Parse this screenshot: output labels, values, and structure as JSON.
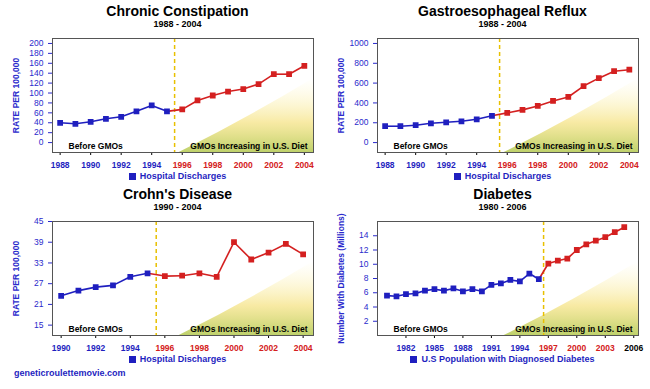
{
  "footer": "geneticroulettemovie.com",
  "chart_data": [
    {
      "type": "line",
      "title": "Chronic Constipation",
      "subtitle": "1988 - 2004",
      "ylabel": "RATE PER 100,000",
      "x": [
        1988,
        1989,
        1990,
        1991,
        1992,
        1993,
        1994,
        1995,
        1996,
        1997,
        1998,
        1999,
        2000,
        2001,
        2002,
        2003,
        2004
      ],
      "series": [
        {
          "name": "Hospital Discharges",
          "color": "#1f1fbf",
          "marker": "square",
          "values": [
            40,
            38,
            42,
            48,
            52,
            63,
            75,
            63,
            67,
            85,
            95,
            103,
            108,
            118,
            138,
            138,
            155
          ],
          "colors": [
            "#1f1fbf",
            "#1f1fbf",
            "#1f1fbf",
            "#1f1fbf",
            "#1f1fbf",
            "#1f1fbf",
            "#1f1fbf",
            "#1f1fbf",
            "#d42020",
            "#d42020",
            "#d42020",
            "#d42020",
            "#d42020",
            "#d42020",
            "#d42020",
            "#d42020",
            "#d42020"
          ]
        }
      ],
      "xlim": [
        1987.5,
        2004.6
      ],
      "xticks": [
        1988,
        1990,
        1992,
        1994,
        1996,
        1998,
        2000,
        2002,
        2004
      ],
      "ylim": [
        -20,
        210
      ],
      "yticks": [
        0,
        20,
        40,
        60,
        80,
        100,
        120,
        140,
        160,
        180,
        200
      ],
      "grid": false,
      "legend": "bottom",
      "vline": {
        "x": 1995.5,
        "color": "#e8c000",
        "line_style": "dashed"
      },
      "annotations": [
        "Before GMOs",
        "GMOs Increasing in U.S. Diet"
      ]
    },
    {
      "type": "line",
      "title": "Gastroesophageal Reflux",
      "subtitle": "1988 - 2004",
      "ylabel": "RATE PER 100,000",
      "x": [
        1988,
        1989,
        1990,
        1991,
        1992,
        1993,
        1994,
        1995,
        1996,
        1997,
        1998,
        1999,
        2000,
        2001,
        2002,
        2003,
        2004
      ],
      "series": [
        {
          "name": "Hospital Discharges",
          "color": "#1f1fbf",
          "marker": "square",
          "values": [
            165,
            165,
            175,
            195,
            205,
            215,
            235,
            270,
            300,
            330,
            370,
            420,
            460,
            570,
            650,
            720,
            735
          ],
          "colors": [
            "#1f1fbf",
            "#1f1fbf",
            "#1f1fbf",
            "#1f1fbf",
            "#1f1fbf",
            "#1f1fbf",
            "#1f1fbf",
            "#1f1fbf",
            "#d42020",
            "#d42020",
            "#d42020",
            "#d42020",
            "#d42020",
            "#d42020",
            "#d42020",
            "#d42020",
            "#d42020"
          ]
        }
      ],
      "xlim": [
        1987.5,
        2004.6
      ],
      "xticks": [
        1988,
        1990,
        1992,
        1994,
        1996,
        1998,
        2000,
        2002,
        2004
      ],
      "ylim": [
        -100,
        1050
      ],
      "yticks": [
        0,
        200,
        400,
        600,
        800,
        1000
      ],
      "grid": false,
      "legend": "bottom",
      "vline": {
        "x": 1995.5,
        "color": "#e8c000",
        "line_style": "dashed"
      },
      "annotations": [
        "Before GMOs",
        "GMOs Increasing in U.S. Diet"
      ]
    },
    {
      "type": "line",
      "title": "Crohn's Disease",
      "subtitle": "1990 - 2004",
      "ylabel": "RATE PER 100,000",
      "x": [
        1990,
        1991,
        1992,
        1993,
        1994,
        1995,
        1996,
        1997,
        1998,
        1999,
        2000,
        2001,
        2002,
        2003,
        2004
      ],
      "series": [
        {
          "name": "Hospital Discharges",
          "color": "#1f1fbf",
          "marker": "square",
          "values": [
            23.5,
            25,
            26,
            26.5,
            29,
            30,
            29.2,
            29.3,
            30,
            29,
            39,
            34,
            36,
            38.5,
            35.5
          ],
          "colors": [
            "#1f1fbf",
            "#1f1fbf",
            "#1f1fbf",
            "#1f1fbf",
            "#1f1fbf",
            "#1f1fbf",
            "#d42020",
            "#d42020",
            "#d42020",
            "#d42020",
            "#d42020",
            "#d42020",
            "#d42020",
            "#d42020",
            "#d42020"
          ]
        }
      ],
      "xlim": [
        1989.5,
        2004.6
      ],
      "xticks": [
        1990,
        1992,
        1994,
        1996,
        1998,
        2000,
        2002,
        2004
      ],
      "ylim": [
        12,
        45
      ],
      "yticks": [
        15,
        21,
        27,
        33,
        39,
        45
      ],
      "grid": false,
      "legend": "bottom",
      "vline": {
        "x": 1995.5,
        "color": "#e8c000",
        "line_style": "dashed"
      },
      "annotations": [
        "Before GMOs",
        "GMOs Increasing in U.S. Diet"
      ]
    },
    {
      "type": "line",
      "title": "Diabetes",
      "subtitle": "1980 - 2006",
      "ylabel": "Number With Diabetes (Millions)",
      "x": [
        1980,
        1981,
        1982,
        1983,
        1984,
        1985,
        1986,
        1987,
        1988,
        1989,
        1990,
        1991,
        1992,
        1993,
        1994,
        1995,
        1996,
        1997,
        1998,
        1999,
        2000,
        2001,
        2002,
        2003,
        2004,
        2005
      ],
      "series": [
        {
          "name": "U.S Population with Diagnosed Diabetes",
          "color": "#1f1fbf",
          "marker": "square",
          "values": [
            5.6,
            5.5,
            5.8,
            5.9,
            6.3,
            6.5,
            6.3,
            6.6,
            6.2,
            6.5,
            6.2,
            7.1,
            7.3,
            7.8,
            7.6,
            8.7,
            7.9,
            10.1,
            10.5,
            10.8,
            12.0,
            12.8,
            13.3,
            13.8,
            14.5,
            15.2
          ],
          "colors": [
            "#1f1fbf",
            "#1f1fbf",
            "#1f1fbf",
            "#1f1fbf",
            "#1f1fbf",
            "#1f1fbf",
            "#1f1fbf",
            "#1f1fbf",
            "#1f1fbf",
            "#1f1fbf",
            "#1f1fbf",
            "#1f1fbf",
            "#1f1fbf",
            "#1f1fbf",
            "#1f1fbf",
            "#1f1fbf",
            "#1f1fbf",
            "#d42020",
            "#d42020",
            "#d42020",
            "#d42020",
            "#d42020",
            "#d42020",
            "#d42020",
            "#d42020",
            "#d42020"
          ]
        }
      ],
      "xlim": [
        1979,
        2006.5
      ],
      "xticks": [
        1982,
        1985,
        1988,
        1991,
        1994,
        1997,
        2000,
        2003,
        2006
      ],
      "ylim": [
        0,
        16
      ],
      "yticks": [
        2,
        4,
        6,
        8,
        10,
        12,
        14
      ],
      "grid": false,
      "legend": "bottom",
      "vline": {
        "x": 1996.5,
        "color": "#e8c000",
        "line_style": "dashed"
      },
      "annotations": [
        "Before GMOs",
        "GMOs Increasing in U.S. Diet"
      ]
    }
  ]
}
